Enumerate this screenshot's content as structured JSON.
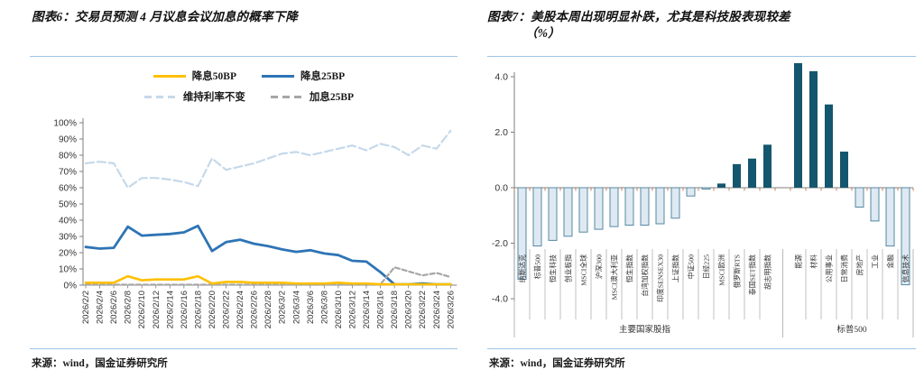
{
  "page": {
    "figure6": {
      "title": "图表6：交易员预测 4 月议息会议加息的概率下降",
      "source": "来源：wind，国金证券研究所"
    },
    "figure7": {
      "title": "图表7：美股本周出现明显补跌，尤其是科技股表现较差",
      "title_unit": "（%）",
      "source": "来源：wind，国金证券研究所"
    }
  },
  "colors": {
    "title_rule": "#9DC3E6",
    "axis": "#7F7F7F",
    "axis_text": "#333333",
    "bar_positive": "#14566E",
    "bar_negative_fill": "#DEE9F2",
    "bar_negative_border": "#5789A3",
    "zero_tick": "#C0764A"
  },
  "chart_data": [
    {
      "type": "line",
      "title": "交易员预测4月议息会议加息的概率",
      "xlabel": "",
      "ylabel": "",
      "ylim": [
        0,
        100
      ],
      "ytick_step": 10,
      "ytick_suffix": "%",
      "grid": false,
      "legend_position": "top",
      "x": [
        "2026/2/2",
        "2026/2/4",
        "2026/2/6",
        "2026/2/8",
        "2026/2/10",
        "2026/2/12",
        "2026/2/14",
        "2026/2/16",
        "2026/2/18",
        "2026/2/20",
        "2026/2/22",
        "2026/2/24",
        "2026/2/26",
        "2026/2/28",
        "2026/3/2",
        "2026/3/4",
        "2026/3/6",
        "2026/3/8",
        "2026/3/10",
        "2026/3/12",
        "2026/3/14",
        "2026/3/16",
        "2026/3/18",
        "2026/3/20",
        "2026/3/22",
        "2026/3/24",
        "2026/3/26"
      ],
      "series": [
        {
          "id": "cut50",
          "name": "降息50BP",
          "color": "#FFC000",
          "dash": "solid",
          "values": [
            1.5,
            1.5,
            1.5,
            5.5,
            3,
            3.5,
            3.5,
            3.5,
            5.5,
            1,
            2,
            2,
            1.5,
            1.5,
            1.5,
            1,
            1,
            1,
            1.5,
            1,
            1,
            0.5,
            0.5,
            0.5,
            0.5,
            0.5,
            0.5
          ]
        },
        {
          "id": "cut25",
          "name": "降息25BP",
          "color": "#2E74B5",
          "dash": "solid",
          "values": [
            23.5,
            22.5,
            23,
            36,
            30.5,
            31,
            31.5,
            32.5,
            36.5,
            21,
            26.5,
            28,
            25.5,
            24,
            22,
            20.5,
            21.5,
            19.5,
            18.5,
            15,
            14.5,
            8,
            0.5,
            0.5,
            1,
            0.5,
            0.5
          ]
        },
        {
          "id": "hold",
          "name": "维持利率不变",
          "color": "#C5D9EA",
          "dash": "dashed",
          "values": [
            75,
            76,
            75,
            60,
            66,
            66,
            65,
            63.5,
            61,
            78,
            71,
            73,
            75,
            78,
            81,
            82,
            80,
            82,
            84,
            86,
            83,
            87,
            85,
            80,
            86,
            84,
            95
          ]
        },
        {
          "id": "hike25",
          "name": "加息25BP",
          "color": "#A6A6A6",
          "dash": "dashed",
          "values": [
            0.3,
            0.3,
            0.3,
            0.3,
            0.3,
            0.3,
            0.3,
            0.3,
            0.3,
            0.3,
            0.3,
            0.3,
            0.3,
            0.3,
            0.3,
            0.3,
            0.3,
            0.3,
            0.3,
            0.3,
            0.3,
            0.5,
            11,
            8.5,
            6,
            7.5,
            5
          ]
        }
      ]
    },
    {
      "type": "bar",
      "title": "美股本周出现明显补跌（周涨跌幅，%）",
      "xlabel": "",
      "ylabel": "",
      "ylim": [
        -4,
        8
      ],
      "ytick_step": 2,
      "grid": false,
      "groups": [
        {
          "label": "主要国家股指",
          "categories": [
            "纳斯达克",
            "标普500",
            "恒生科技",
            "创业板指",
            "MSCI全球",
            "沪深300",
            "MSCI澳大利亚",
            "恒生指数",
            "台湾加权指数",
            "印度SENSEX30",
            "上证指数",
            "中证500",
            "日经225",
            "MSCI欧洲",
            "俄罗斯RTS",
            "泰国SET指数",
            "胡志明指数"
          ],
          "values": [
            -3.3,
            -2.1,
            -1.9,
            -1.75,
            -1.6,
            -1.5,
            -1.4,
            -1.35,
            -1.35,
            -1.3,
            -1.1,
            -0.3,
            -0.05,
            0.15,
            0.85,
            1.05,
            1.55
          ]
        },
        {
          "label": "标普500",
          "categories": [
            "能源",
            "材料",
            "公用事业",
            "日常消费",
            "房地产",
            "工业",
            "金融",
            "信息技术"
          ],
          "values": [
            6.25,
            4.2,
            3.0,
            1.3,
            -0.7,
            -1.2,
            -2.1,
            -3.5
          ]
        }
      ]
    }
  ]
}
